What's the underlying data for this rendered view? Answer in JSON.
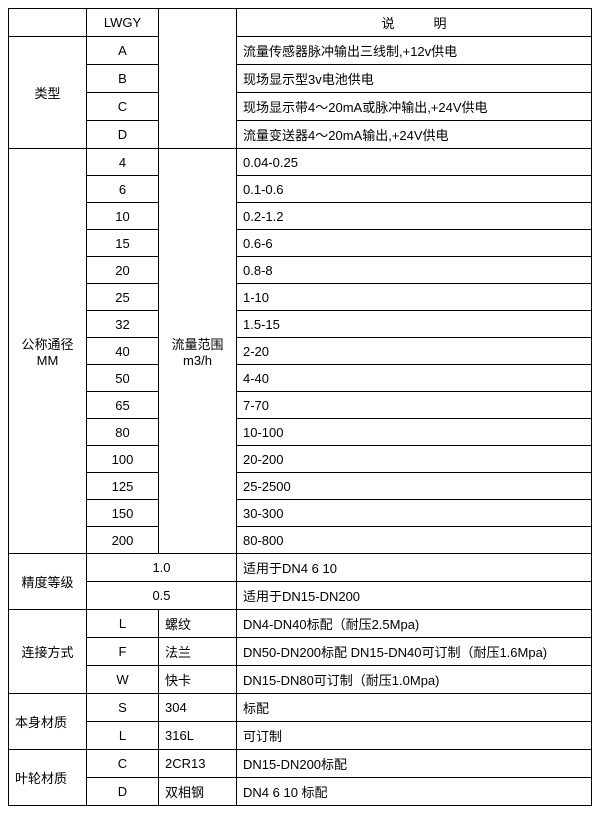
{
  "header": {
    "lwgy": "LWGY",
    "desc": "说　　　明"
  },
  "type_section": {
    "label": "类型",
    "rows": [
      {
        "code": "A",
        "desc": "流量传感器脉冲输出三线制,+12v供电"
      },
      {
        "code": "B",
        "desc": "现场显示型3v电池供电"
      },
      {
        "code": "C",
        "desc": "现场显示带4～20mA或脉冲输出,+24V供电"
      },
      {
        "code": "D",
        "desc": "流量变送器4～20mA输出,+24V供电"
      }
    ]
  },
  "diameter_section": {
    "label_line1": "公称通径",
    "label_line2": "MM",
    "range_label_line1": "流量范围",
    "range_label_line2": "m3/h",
    "rows": [
      {
        "size": "4",
        "range": "0.04-0.25"
      },
      {
        "size": "6",
        "range": "0.1-0.6"
      },
      {
        "size": "10",
        "range": "0.2-1.2"
      },
      {
        "size": "15",
        "range": "0.6-6"
      },
      {
        "size": "20",
        "range": "0.8-8"
      },
      {
        "size": "25",
        "range": "1-10"
      },
      {
        "size": "32",
        "range": "1.5-15"
      },
      {
        "size": "40",
        "range": "2-20"
      },
      {
        "size": "50",
        "range": "4-40"
      },
      {
        "size": "65",
        "range": "7-70"
      },
      {
        "size": "80",
        "range": "10-100"
      },
      {
        "size": "100",
        "range": "20-200"
      },
      {
        "size": "125",
        "range": "25-2500"
      },
      {
        "size": "150",
        "range": "30-300"
      },
      {
        "size": "200",
        "range": "80-800"
      }
    ]
  },
  "accuracy_section": {
    "label": "精度等级",
    "rows": [
      {
        "val": "1.0",
        "desc": "适用于DN4  6  10"
      },
      {
        "val": "0.5",
        "desc": "适用于DN15-DN200"
      }
    ]
  },
  "connection_section": {
    "label": "连接方式",
    "rows": [
      {
        "code": "L",
        "name": "螺纹",
        "desc": "DN4-DN40标配（耐压2.5Mpa)"
      },
      {
        "code": "F",
        "name": "法兰",
        "desc": "DN50-DN200标配 DN15-DN40可订制（耐压1.6Mpa)"
      },
      {
        "code": "W",
        "name": "快卡",
        "desc": "DN15-DN80可订制（耐压1.0Mpa)"
      }
    ]
  },
  "body_material_section": {
    "label": "本身材质",
    "rows": [
      {
        "code": "S",
        "name": "304",
        "desc": "标配"
      },
      {
        "code": "L",
        "name": "316L",
        "desc": "可订制"
      }
    ]
  },
  "impeller_section": {
    "label": "叶轮材质",
    "rows": [
      {
        "code": "C",
        "name": "2CR13",
        "desc": "DN15-DN200标配"
      },
      {
        "code": "D",
        "name": "双相钢",
        "desc": "DN4 6 10 标配"
      }
    ]
  }
}
